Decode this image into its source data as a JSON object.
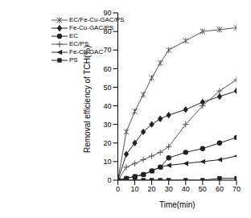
{
  "chart_data": {
    "type": "line",
    "x_label": "Time(min)",
    "y_label": "Removal efficiency of TCH(%)",
    "x": [
      0,
      5,
      10,
      15,
      20,
      25,
      30,
      40,
      50,
      60,
      70
    ],
    "xlim": [
      0,
      70
    ],
    "xticks": [
      0,
      10,
      20,
      30,
      40,
      50,
      60,
      70
    ],
    "ylim": [
      0,
      90
    ],
    "yticks": [
      0,
      10,
      20,
      30,
      40,
      50,
      60,
      70,
      80,
      90
    ],
    "grid": false,
    "legend": "upper left",
    "series": [
      {
        "name": "EC/Fe-Cu-GAC/PS",
        "color": "#555555",
        "marker": "asterisk",
        "values": [
          0,
          26,
          37,
          46,
          55,
          63,
          70,
          75,
          80,
          81,
          82
        ]
      },
      {
        "name": "Fe-Cu-GAC/PS",
        "color": "#222222",
        "marker": "diamond",
        "values": [
          0,
          14,
          20,
          26,
          30,
          33,
          35,
          38,
          42,
          45,
          48
        ]
      },
      {
        "name": "EC",
        "color": "#222222",
        "marker": "circle",
        "values": [
          0,
          1,
          2,
          3,
          5,
          7,
          12,
          15,
          17,
          20,
          23
        ]
      },
      {
        "name": "EC/PS",
        "color": "#555555",
        "marker": "plus",
        "values": [
          0,
          7,
          9,
          11,
          13,
          15,
          18,
          30,
          40,
          48,
          54
        ]
      },
      {
        "name": "Fe-Cu-GAC",
        "color": "#222222",
        "marker": "triangle-left",
        "values": [
          0,
          1,
          2,
          3,
          5,
          7,
          8,
          9,
          10,
          11,
          13
        ]
      },
      {
        "name": "PS",
        "color": "#222222",
        "marker": "square",
        "values": [
          0,
          0,
          0,
          0,
          0,
          0,
          0,
          0,
          0,
          1,
          1
        ]
      }
    ]
  }
}
